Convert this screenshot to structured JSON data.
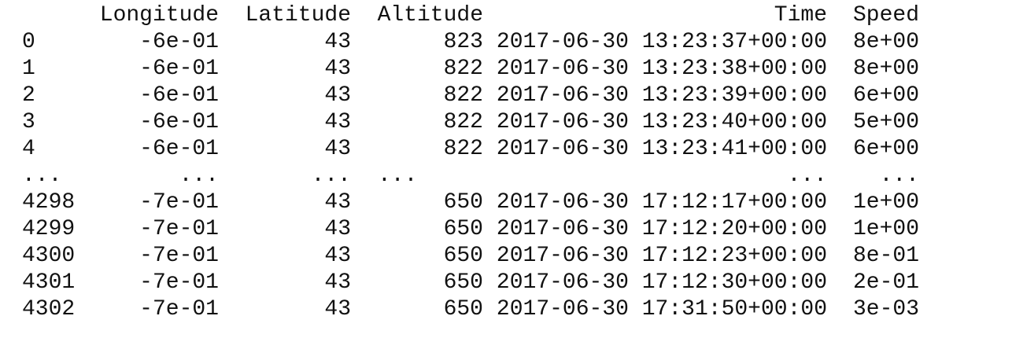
{
  "table": {
    "columns": [
      "Longitude",
      "Latitude",
      "Altitude",
      "Time",
      "Speed"
    ],
    "rows": [
      {
        "index": "0",
        "cells": [
          "-6e-01",
          "43",
          "823",
          "2017-06-30 13:23:37+00:00",
          "8e+00"
        ]
      },
      {
        "index": "1",
        "cells": [
          "-6e-01",
          "43",
          "822",
          "2017-06-30 13:23:38+00:00",
          "8e+00"
        ]
      },
      {
        "index": "2",
        "cells": [
          "-6e-01",
          "43",
          "822",
          "2017-06-30 13:23:39+00:00",
          "6e+00"
        ]
      },
      {
        "index": "3",
        "cells": [
          "-6e-01",
          "43",
          "822",
          "2017-06-30 13:23:40+00:00",
          "5e+00"
        ]
      },
      {
        "index": "4",
        "cells": [
          "-6e-01",
          "43",
          "822",
          "2017-06-30 13:23:41+00:00",
          "6e+00"
        ]
      },
      {
        "index": "...",
        "cells": [
          "...",
          "...",
          "...",
          "...",
          "..."
        ]
      },
      {
        "index": "4298",
        "cells": [
          "-7e-01",
          "43",
          "650",
          "2017-06-30 17:12:17+00:00",
          "1e+00"
        ]
      },
      {
        "index": "4299",
        "cells": [
          "-7e-01",
          "43",
          "650",
          "2017-06-30 17:12:20+00:00",
          "1e+00"
        ]
      },
      {
        "index": "4300",
        "cells": [
          "-7e-01",
          "43",
          "650",
          "2017-06-30 17:12:23+00:00",
          "8e-01"
        ]
      },
      {
        "index": "4301",
        "cells": [
          "-7e-01",
          "43",
          "650",
          "2017-06-30 17:12:30+00:00",
          "2e-01"
        ]
      },
      {
        "index": "4302",
        "cells": [
          "-7e-01",
          "43",
          "650",
          "2017-06-30 17:31:50+00:00",
          "3e-03"
        ]
      }
    ]
  }
}
